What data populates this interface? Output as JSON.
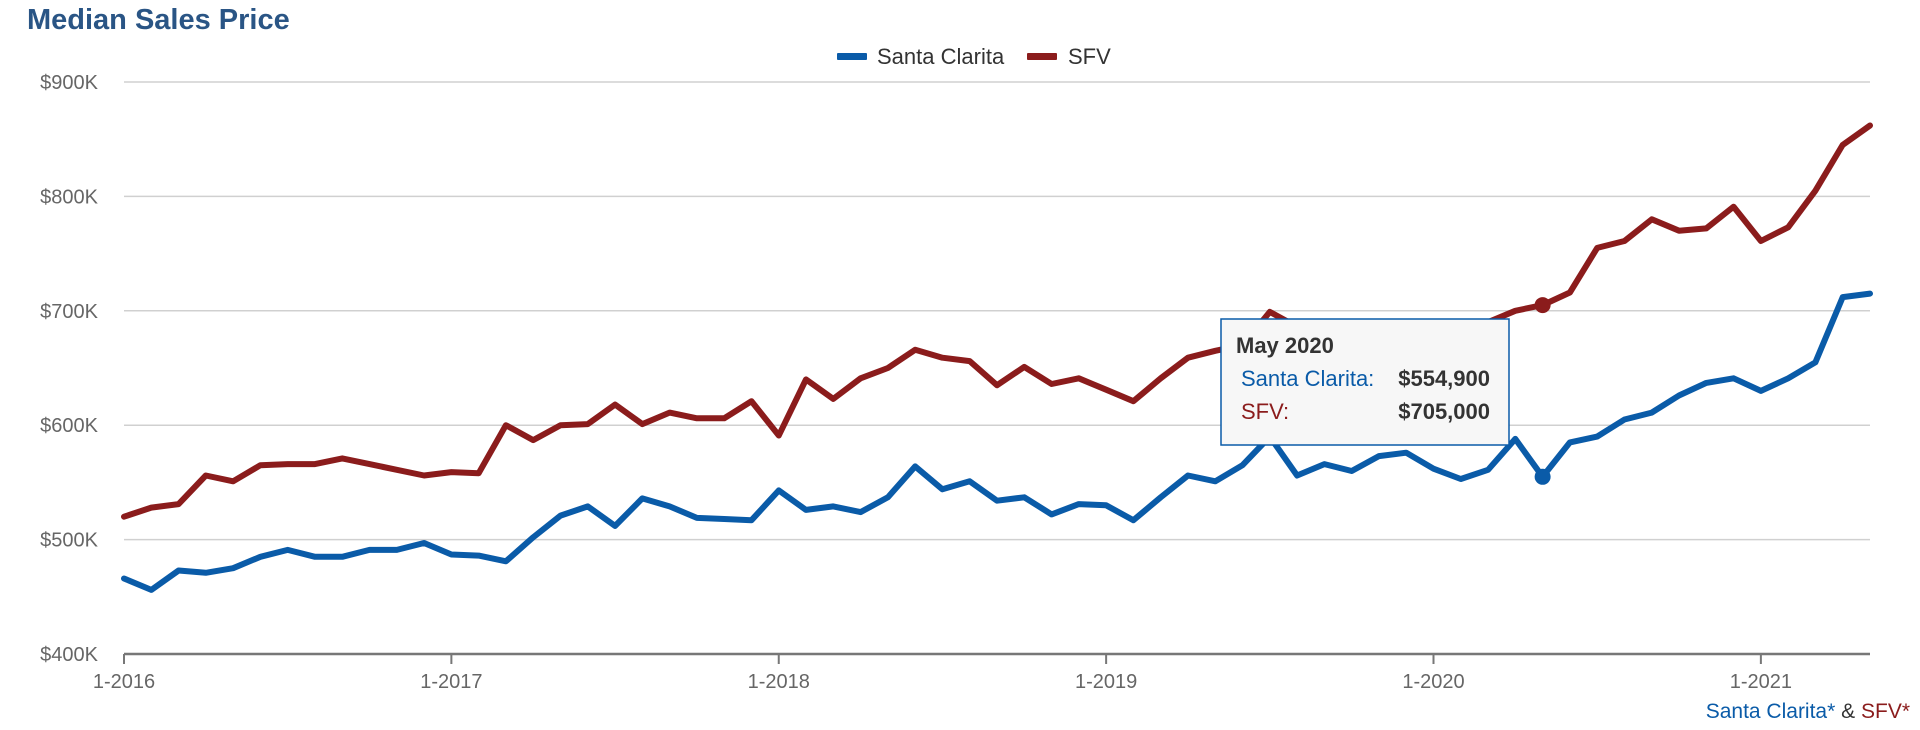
{
  "colors": {
    "title": "#2a5585",
    "santa_clarita": "#0a5ba8",
    "sfv": "#8b1c1c",
    "grid": "#d0d0d0",
    "axis": "#777777",
    "tooltip_border": "#0a5ba8",
    "tooltip_bg": "#f7f7f7"
  },
  "chart_data": {
    "type": "line",
    "title": "Median Sales Price",
    "xlabel": "",
    "ylabel": "",
    "x_start": "2016-01",
    "x_end": "2021-05",
    "ylim": [
      400000,
      900000
    ],
    "yticks": [
      {
        "value": 400000,
        "label": "$400K"
      },
      {
        "value": 500000,
        "label": "$500K"
      },
      {
        "value": 600000,
        "label": "$600K"
      },
      {
        "value": 700000,
        "label": "$700K"
      },
      {
        "value": 800000,
        "label": "$800K"
      },
      {
        "value": 900000,
        "label": "$900K"
      }
    ],
    "xticks": [
      {
        "month": "2016-01",
        "label": "1-2016"
      },
      {
        "month": "2017-01",
        "label": "1-2017"
      },
      {
        "month": "2018-01",
        "label": "1-2018"
      },
      {
        "month": "2019-01",
        "label": "1-2019"
      },
      {
        "month": "2020-01",
        "label": "1-2020"
      },
      {
        "month": "2021-01",
        "label": "1-2021"
      }
    ],
    "grid": true,
    "legend_position": "top-center",
    "series": [
      {
        "name": "Santa Clarita",
        "color": "#0a5ba8",
        "values": [
          466000,
          456000,
          473000,
          471000,
          475000,
          485000,
          491000,
          485000,
          485000,
          491000,
          491000,
          497000,
          487000,
          486000,
          481000,
          502000,
          521000,
          529000,
          512000,
          536000,
          529000,
          519000,
          518000,
          517000,
          543000,
          526000,
          529000,
          524000,
          537000,
          564000,
          544000,
          551000,
          534000,
          537000,
          522000,
          531000,
          530000,
          517000,
          537000,
          556000,
          551000,
          565000,
          590000,
          556000,
          566000,
          560000,
          573000,
          576000,
          562000,
          553000,
          561000,
          588000,
          554900,
          585000,
          590000,
          605000,
          611000,
          626000,
          637000,
          641000,
          630000,
          641000,
          655000,
          712000,
          715000
        ]
      },
      {
        "name": "SFV",
        "color": "#8b1c1c",
        "values": [
          520000,
          528000,
          531000,
          556000,
          551000,
          565000,
          566000,
          566000,
          571000,
          566000,
          561000,
          556000,
          559000,
          558000,
          600000,
          587000,
          600000,
          601000,
          618000,
          601000,
          611000,
          606000,
          606000,
          621000,
          591000,
          640000,
          623000,
          641000,
          650000,
          666000,
          659000,
          656000,
          635000,
          651000,
          636000,
          641000,
          631000,
          621000,
          641000,
          659000,
          665000,
          670000,
          699000,
          686000,
          690000,
          686000,
          682000,
          678000,
          678000,
          680000,
          690000,
          700000,
          705000,
          716000,
          755000,
          761000,
          780000,
          770000,
          772000,
          791000,
          761000,
          773000,
          805000,
          845000,
          862000
        ]
      }
    ],
    "tooltip": {
      "month": "2020-05",
      "title": "May 2020",
      "rows": [
        {
          "label": "Santa Clarita:",
          "value": "$554,900"
        },
        {
          "label": "SFV:",
          "value": "$705,000"
        }
      ]
    },
    "credits": {
      "part1": "Santa Clarita*",
      "separator": " & ",
      "part2": "SFV*"
    }
  }
}
